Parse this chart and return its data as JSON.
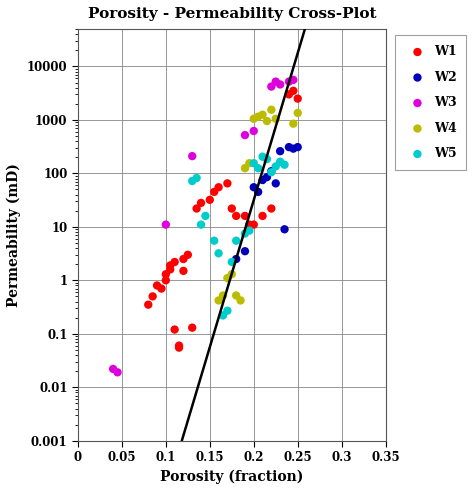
{
  "title": "Porosity - Permeability Cross-Plot",
  "xlabel": "Porosity (fraction)",
  "ylabel": "Permeability (mD)",
  "xlim": [
    0,
    0.35
  ],
  "ylim_log": [
    0.001,
    50000
  ],
  "xticks": [
    0,
    0.05,
    0.1,
    0.15,
    0.2,
    0.25,
    0.3,
    0.35
  ],
  "yticks": [
    0.001,
    0.01,
    0.1,
    1,
    10,
    100,
    1000,
    10000
  ],
  "ytick_labels": [
    "0.001",
    "0.01",
    "0.1",
    "1",
    "10",
    "100",
    "1000",
    "10000"
  ],
  "regression_line": {
    "slope_log10": 55.0,
    "intercept_log10": -9.5,
    "x_start": 0.038,
    "x_end": 0.292
  },
  "wells": {
    "W1": {
      "color": "#FF0000",
      "data": [
        [
          0.08,
          0.35
        ],
        [
          0.085,
          0.5
        ],
        [
          0.09,
          0.8
        ],
        [
          0.095,
          0.7
        ],
        [
          0.1,
          1.0
        ],
        [
          0.1,
          1.3
        ],
        [
          0.105,
          1.6
        ],
        [
          0.105,
          1.9
        ],
        [
          0.11,
          2.2
        ],
        [
          0.11,
          0.12
        ],
        [
          0.115,
          0.06
        ],
        [
          0.115,
          0.055
        ],
        [
          0.12,
          2.5
        ],
        [
          0.12,
          1.5
        ],
        [
          0.125,
          3.0
        ],
        [
          0.13,
          0.13
        ],
        [
          0.135,
          22.0
        ],
        [
          0.14,
          28.0
        ],
        [
          0.15,
          32.0
        ],
        [
          0.155,
          45.0
        ],
        [
          0.16,
          55.0
        ],
        [
          0.17,
          65.0
        ],
        [
          0.175,
          22.0
        ],
        [
          0.18,
          16.0
        ],
        [
          0.19,
          16.0
        ],
        [
          0.195,
          11.0
        ],
        [
          0.2,
          11.0
        ],
        [
          0.21,
          16.0
        ],
        [
          0.22,
          22.0
        ],
        [
          0.24,
          3000.0
        ],
        [
          0.245,
          3500.0
        ],
        [
          0.25,
          2500.0
        ]
      ]
    },
    "W2": {
      "color": "#0000BB",
      "data": [
        [
          0.18,
          2.5
        ],
        [
          0.19,
          3.5
        ],
        [
          0.2,
          55.0
        ],
        [
          0.205,
          45.0
        ],
        [
          0.21,
          75.0
        ],
        [
          0.215,
          85.0
        ],
        [
          0.22,
          110.0
        ],
        [
          0.225,
          65.0
        ],
        [
          0.23,
          260.0
        ],
        [
          0.235,
          9.0
        ],
        [
          0.24,
          310.0
        ],
        [
          0.245,
          290.0
        ],
        [
          0.25,
          310.0
        ]
      ]
    },
    "W3": {
      "color": "#DD00DD",
      "data": [
        [
          0.04,
          0.022
        ],
        [
          0.045,
          0.019
        ],
        [
          0.1,
          11.0
        ],
        [
          0.13,
          210.0
        ],
        [
          0.19,
          520.0
        ],
        [
          0.2,
          620.0
        ],
        [
          0.22,
          4200.0
        ],
        [
          0.225,
          5200.0
        ],
        [
          0.23,
          4600.0
        ],
        [
          0.24,
          5200.0
        ],
        [
          0.245,
          5600.0
        ]
      ]
    },
    "W4": {
      "color": "#BBBB00",
      "data": [
        [
          0.16,
          0.42
        ],
        [
          0.165,
          0.52
        ],
        [
          0.17,
          1.1
        ],
        [
          0.175,
          1.3
        ],
        [
          0.18,
          0.52
        ],
        [
          0.185,
          0.42
        ],
        [
          0.19,
          125.0
        ],
        [
          0.195,
          155.0
        ],
        [
          0.2,
          1050.0
        ],
        [
          0.205,
          1150.0
        ],
        [
          0.21,
          1250.0
        ],
        [
          0.215,
          950.0
        ],
        [
          0.22,
          1550.0
        ],
        [
          0.225,
          1050.0
        ],
        [
          0.245,
          850.0
        ],
        [
          0.25,
          1350.0
        ]
      ]
    },
    "W5": {
      "color": "#00CCCC",
      "data": [
        [
          0.13,
          72.0
        ],
        [
          0.135,
          82.0
        ],
        [
          0.14,
          11.0
        ],
        [
          0.145,
          16.0
        ],
        [
          0.155,
          5.5
        ],
        [
          0.16,
          3.2
        ],
        [
          0.165,
          0.22
        ],
        [
          0.17,
          0.27
        ],
        [
          0.175,
          2.2
        ],
        [
          0.18,
          5.5
        ],
        [
          0.19,
          7.5
        ],
        [
          0.195,
          8.5
        ],
        [
          0.2,
          155.0
        ],
        [
          0.205,
          125.0
        ],
        [
          0.21,
          205.0
        ],
        [
          0.215,
          185.0
        ],
        [
          0.22,
          105.0
        ],
        [
          0.225,
          135.0
        ],
        [
          0.23,
          165.0
        ],
        [
          0.235,
          145.0
        ]
      ]
    }
  },
  "background_color": "#ffffff",
  "plot_bg_color": "#f0f0f0",
  "grid_color": "#888888",
  "title_fontsize": 11,
  "label_fontsize": 10,
  "tick_fontsize": 8.5,
  "legend_fontsize": 9,
  "marker_size": 6
}
